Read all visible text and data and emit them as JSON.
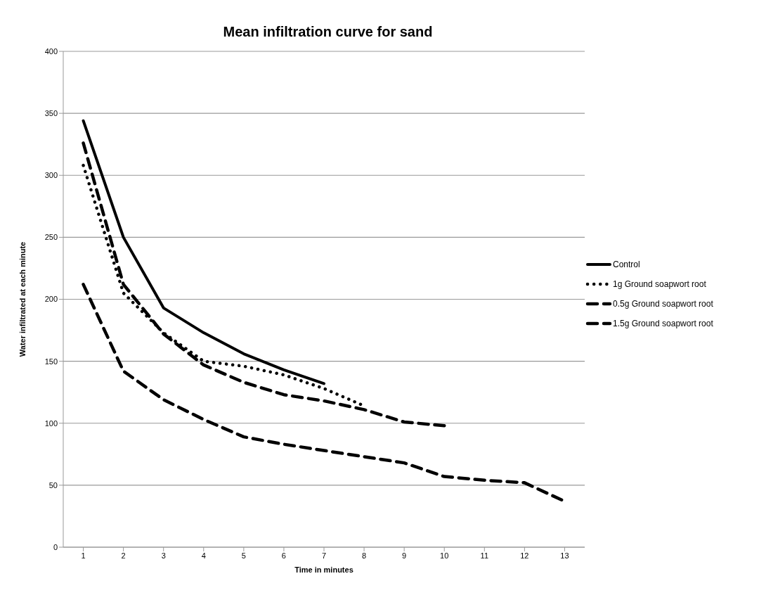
{
  "chart_data": {
    "type": "line",
    "title": "Mean infiltration curve for sand",
    "xlabel": "Time in minutes",
    "ylabel": "Water infiltrated  at each minute",
    "x": [
      1,
      2,
      3,
      4,
      5,
      6,
      7,
      8,
      9,
      10,
      11,
      12,
      13
    ],
    "xlim": [
      0.5,
      13.5
    ],
    "xticks": [
      1,
      2,
      3,
      4,
      5,
      6,
      7,
      8,
      9,
      10,
      11,
      12,
      13
    ],
    "series": [
      {
        "name": "Control",
        "color": "#000000",
        "line_style": "solid",
        "values": [
          344,
          250,
          193,
          173,
          156,
          143,
          132,
          null,
          null,
          null,
          null,
          null,
          null
        ]
      },
      {
        "name": "1g Ground  soapwort  root",
        "color": "#000000",
        "line_style": "dotted",
        "values": [
          308,
          205,
          173,
          150,
          146,
          139,
          128,
          114,
          null,
          null,
          null,
          null,
          null
        ]
      },
      {
        "name": "0.5g Ground  soapwort root",
        "color": "#000000",
        "line_style": "dashed",
        "values": [
          326,
          212,
          172,
          147,
          133,
          123,
          118,
          111,
          101,
          98,
          null,
          null,
          null
        ]
      },
      {
        "name": "1.5g Ground  soapwort root",
        "color": "#000000",
        "line_style": "dashed",
        "values": [
          212,
          142,
          119,
          103,
          89,
          83,
          78,
          73,
          68,
          57,
          54,
          52,
          37
        ]
      }
    ],
    "ylim": [
      0,
      400
    ],
    "yticks": [
      0,
      50,
      100,
      150,
      200,
      250,
      300,
      350,
      400
    ],
    "grid": "y",
    "legend": "right",
    "marker": "none"
  }
}
